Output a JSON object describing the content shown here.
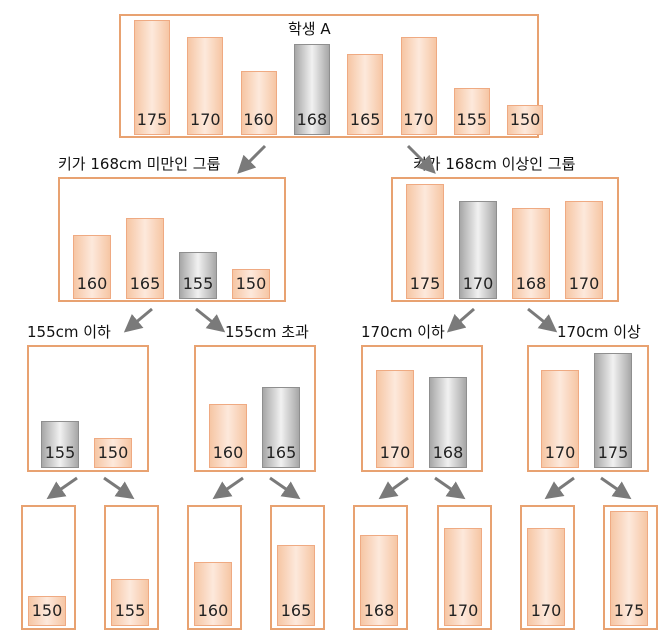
{
  "nodes": [
    {
      "id": "root",
      "title": "학생 A",
      "values": [
        175,
        170,
        160,
        168,
        165,
        170,
        155,
        150
      ],
      "highlight": 3
    },
    {
      "id": "lt168",
      "label": "키가 168cm 미만인 그룹",
      "values": [
        160,
        165,
        155,
        150
      ],
      "highlight": 2
    },
    {
      "id": "ge168",
      "label": "키가 168cm 이상인 그룹",
      "values": [
        175,
        170,
        168,
        170
      ],
      "highlight": 1
    },
    {
      "id": "le155",
      "label": "155cm 이하",
      "values": [
        155,
        150
      ],
      "highlight": 0
    },
    {
      "id": "gt155",
      "label": "155cm 초과",
      "values": [
        160,
        165
      ],
      "highlight": 1
    },
    {
      "id": "le170",
      "label": "170cm 이하",
      "values": [
        170,
        168
      ],
      "highlight": 1
    },
    {
      "id": "ge170",
      "label": "170cm 이상",
      "values": [
        170,
        175
      ],
      "highlight": 1
    },
    {
      "id": "leaf1",
      "values": [
        150
      ]
    },
    {
      "id": "leaf2",
      "values": [
        155
      ]
    },
    {
      "id": "leaf3",
      "values": [
        160
      ]
    },
    {
      "id": "leaf4",
      "values": [
        165
      ]
    },
    {
      "id": "leaf5",
      "values": [
        168
      ]
    },
    {
      "id": "leaf6",
      "values": [
        170
      ]
    },
    {
      "id": "leaf7",
      "values": [
        170
      ]
    },
    {
      "id": "leaf8",
      "values": [
        175
      ]
    }
  ],
  "colors": {
    "frame": "#e8a271",
    "bar": "#f6c6a4",
    "highlight": "#a7a7a7",
    "arrow": "#7a7a7a"
  }
}
